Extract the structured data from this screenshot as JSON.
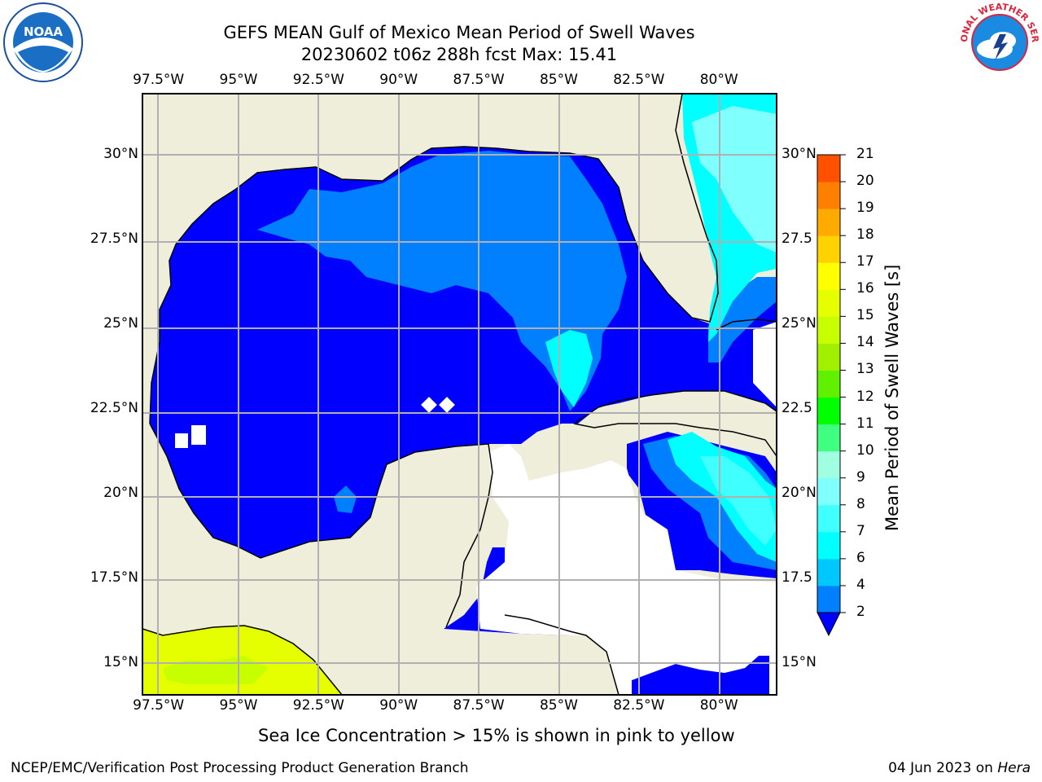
{
  "title": {
    "line1": "GEFS MEAN Gulf of Mexico Mean Period of Swell Waves",
    "line2": "20230602 t06z 288h fcst   Max: 15.41"
  },
  "logos": {
    "noara": {
      "text": "NOAA",
      "icon": "noaa-logo"
    },
    "nws": {
      "text": "NATIONAL WEATHER SERVICE",
      "icon": "nws-logo"
    }
  },
  "map": {
    "lon_range": [
      -98,
      -78.2
    ],
    "lat_range": [
      14,
      31.5
    ],
    "lon_ticks": [
      {
        "value": -97.5,
        "label": "97.5°W"
      },
      {
        "value": -95,
        "label": "95°W"
      },
      {
        "value": -92.5,
        "label": "92.5°W"
      },
      {
        "value": -90,
        "label": "90°W"
      },
      {
        "value": -87.5,
        "label": "87.5°W"
      },
      {
        "value": -85,
        "label": "85°W"
      },
      {
        "value": -82.5,
        "label": "82.5°W"
      },
      {
        "value": -80,
        "label": "80°W"
      }
    ],
    "lat_ticks_left": [
      {
        "value": 30,
        "label": "30°N"
      },
      {
        "value": 27.5,
        "label": "27.5°N"
      },
      {
        "value": 25,
        "label": "25°N"
      },
      {
        "value": 22.5,
        "label": "22.5°N"
      },
      {
        "value": 20,
        "label": "20°N"
      },
      {
        "value": 17.5,
        "label": "17.5°N"
      },
      {
        "value": 15,
        "label": "15°N"
      }
    ],
    "lat_ticks_right": [
      {
        "value": 30,
        "label": "30°N"
      },
      {
        "value": 27.5,
        "label": "27.5"
      },
      {
        "value": 25,
        "label": "25°N"
      },
      {
        "value": 22.5,
        "label": "22.5"
      },
      {
        "value": 20,
        "label": "20°N"
      },
      {
        "value": 17.5,
        "label": "17.5"
      },
      {
        "value": 15,
        "label": "15°N"
      }
    ],
    "colors": {
      "land": "#efeedb",
      "ocean_nodata": "#ffffff",
      "grid": "#b0b0b0",
      "coast": "#000000"
    }
  },
  "colorbar": {
    "label": "Mean Period of Swell Waves [s]",
    "ticks": [
      "2",
      "4",
      "6",
      "7",
      "8",
      "9",
      "10",
      "11",
      "12",
      "13",
      "14",
      "15",
      "16",
      "17",
      "18",
      "19",
      "20",
      "21"
    ],
    "tick_values": [
      2,
      4,
      6,
      7,
      8,
      9,
      10,
      11,
      12,
      13,
      14,
      15,
      16,
      17,
      18,
      19,
      20,
      21
    ],
    "colors": [
      "#0080ff",
      "#00c8ff",
      "#00ffff",
      "#40ffff",
      "#80ffff",
      "#a0ffe0",
      "#40ff80",
      "#00ff00",
      "#60f000",
      "#a0f000",
      "#c8ff00",
      "#e6ff00",
      "#ffff00",
      "#ffd200",
      "#ffaa00",
      "#ff8000",
      "#ff5000",
      "#ff2000",
      "#ff0000"
    ],
    "under_color": "#0000ff",
    "extend": "min"
  },
  "caption": "Sea Ice Concentration > 15% is shown in pink to yellow",
  "footer": {
    "left": "NCEP/EMC/Verification Post Processing Product Generation Branch",
    "right_date": "04 Jun 2023 on ",
    "right_machine": "Hera"
  }
}
